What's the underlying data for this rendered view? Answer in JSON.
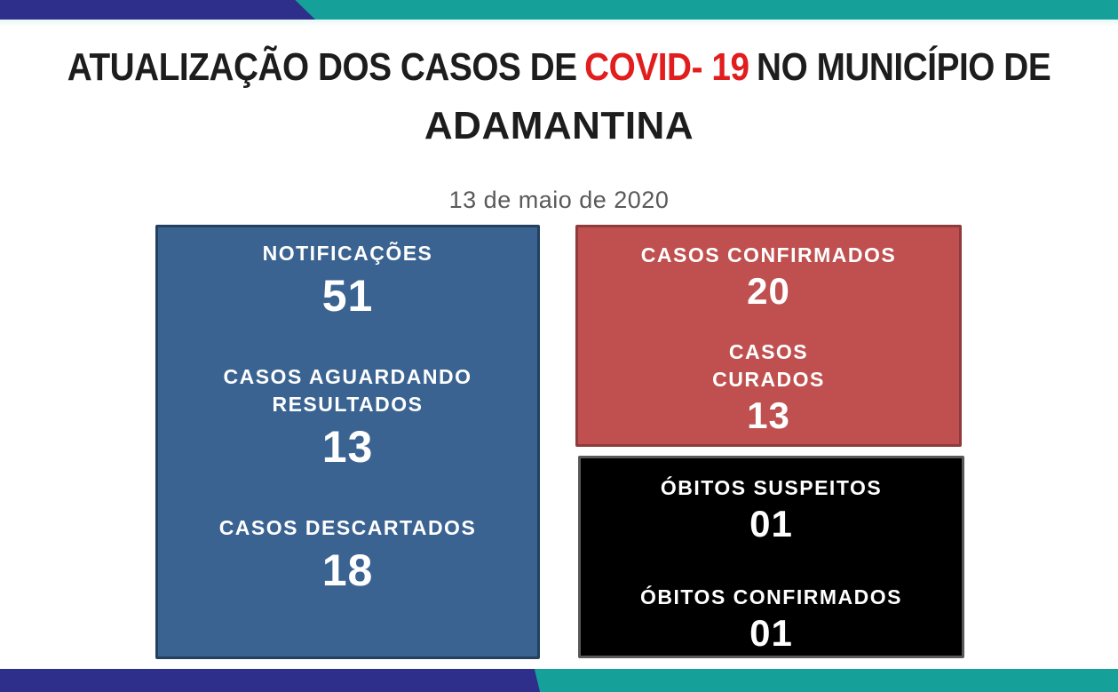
{
  "header": {
    "title_prefix": "ATUALIZAÇÃO DOS CASOS DE",
    "title_highlight": "COVID- 19",
    "title_suffix": "NO MUNICÍPIO DE",
    "title_line2": "ADAMANTINA",
    "date": "13 de maio de 2020"
  },
  "colors": {
    "banner_navy": "#2E2F8B",
    "banner_teal": "#16A09A",
    "title_text": "#1d1d1d",
    "title_highlight_red": "#E11D1D",
    "date_gray": "#595959",
    "card_blue_fill": "#3A6391",
    "card_blue_border": "#24405F",
    "card_red_fill": "#C05050",
    "card_red_border": "#8E3B3B",
    "card_black_fill": "#000000",
    "card_black_border": "#595959",
    "card_text": "#FFFFFF"
  },
  "cards": {
    "notifications": {
      "stats": [
        {
          "label": "NOTIFICAÇÕES",
          "value": "51"
        },
        {
          "label": "CASOS AGUARDANDO\nRESULTADOS",
          "value": "13"
        },
        {
          "label": "CASOS DESCARTADOS",
          "value": "18"
        }
      ]
    },
    "confirmed": {
      "stats": [
        {
          "label": "CASOS CONFIRMADOS",
          "value": "20"
        },
        {
          "label": "CASOS\nCURADOS",
          "value": "13"
        }
      ]
    },
    "deaths": {
      "stats": [
        {
          "label": "ÓBITOS SUSPEITOS",
          "value": "01"
        },
        {
          "label": "ÓBITOS CONFIRMADOS",
          "value": "01"
        }
      ]
    }
  }
}
